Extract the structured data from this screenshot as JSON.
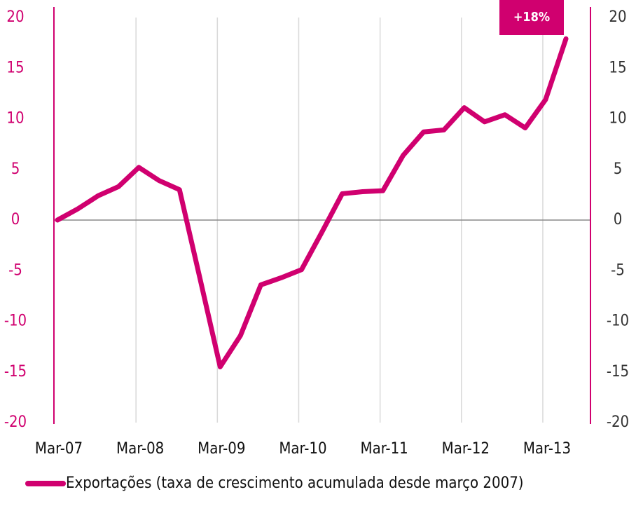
{
  "chart_data": {
    "type": "line",
    "annotation": "+18%",
    "categories": [
      "Mar-07",
      null,
      null,
      null,
      "Mar-08",
      null,
      null,
      null,
      "Mar-09",
      null,
      null,
      null,
      "Mar-10",
      null,
      null,
      null,
      "Mar-11",
      null,
      null,
      null,
      "Mar-12",
      null,
      null,
      null,
      "Mar-13",
      null
    ],
    "series": [
      {
        "name": "Exportações (taxa de crescimento acumulada desde março 2007)",
        "color": "#d0006f",
        "values": [
          0,
          1.1,
          2.4,
          3.3,
          5.2,
          3.9,
          3.0,
          -5.7,
          -14.5,
          -11.4,
          -6.4,
          -5.7,
          -4.9,
          -1.2,
          2.6,
          2.8,
          2.9,
          6.4,
          8.7,
          8.9,
          11.1,
          9.7,
          10.4,
          9.1,
          11.9,
          17.9
        ]
      }
    ],
    "ylim": [
      -20,
      20
    ],
    "yticks": [
      -20,
      -15,
      -10,
      -5,
      0,
      5,
      10,
      15,
      20
    ],
    "y2lim": [
      -20,
      20
    ],
    "y2ticks": [
      -20,
      -15,
      -10,
      -5,
      0,
      5,
      10,
      15,
      20
    ],
    "grid": true,
    "legend": "bottom"
  }
}
